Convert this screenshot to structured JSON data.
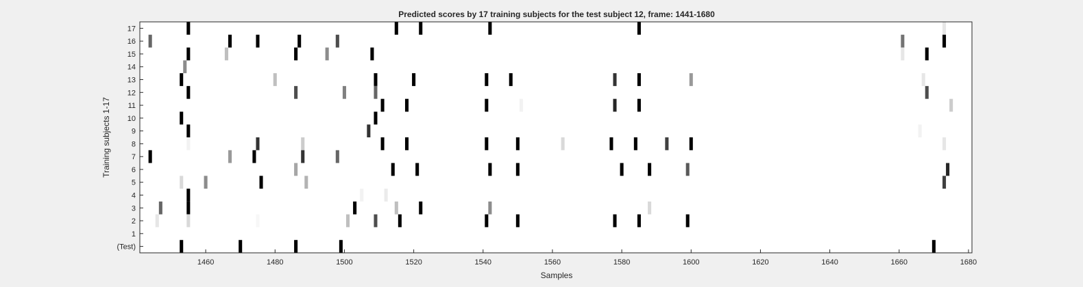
{
  "chart_data": {
    "type": "heatmap",
    "title": "Predicted scores by 17 training subjects for the test subject 12, frame: 1441-1680",
    "xlabel": "Samples",
    "ylabel": "Training subjects 1-17",
    "xlim": [
      1441,
      1680
    ],
    "x_ticks": [
      1460,
      1480,
      1500,
      1520,
      1540,
      1560,
      1580,
      1600,
      1620,
      1640,
      1660,
      1680
    ],
    "rows": [
      "(Test)",
      "1",
      "2",
      "3",
      "4",
      "5",
      "6",
      "7",
      "8",
      "9",
      "10",
      "11",
      "12",
      "13",
      "14",
      "15",
      "16",
      "17"
    ],
    "colormap": "white-to-black (score 0 = white, 1 = black)",
    "grid": false,
    "cells": [
      {
        "row": "17",
        "x": 1455,
        "v": 1.0
      },
      {
        "row": "17",
        "x": 1515,
        "v": 1.0
      },
      {
        "row": "17",
        "x": 1522,
        "v": 1.0
      },
      {
        "row": "17",
        "x": 1542,
        "v": 1.0
      },
      {
        "row": "17",
        "x": 1585,
        "v": 1.0
      },
      {
        "row": "17",
        "x": 1673,
        "v": 0.1
      },
      {
        "row": "16",
        "x": 1444,
        "v": 0.6
      },
      {
        "row": "16",
        "x": 1467,
        "v": 1.0
      },
      {
        "row": "16",
        "x": 1475,
        "v": 1.0
      },
      {
        "row": "16",
        "x": 1487,
        "v": 1.0
      },
      {
        "row": "16",
        "x": 1498,
        "v": 0.7
      },
      {
        "row": "16",
        "x": 1661,
        "v": 0.55
      },
      {
        "row": "16",
        "x": 1673,
        "v": 1.0
      },
      {
        "row": "15",
        "x": 1455,
        "v": 1.0
      },
      {
        "row": "15",
        "x": 1466,
        "v": 0.25
      },
      {
        "row": "15",
        "x": 1486,
        "v": 1.0
      },
      {
        "row": "15",
        "x": 1495,
        "v": 0.45
      },
      {
        "row": "15",
        "x": 1508,
        "v": 1.0
      },
      {
        "row": "15",
        "x": 1661,
        "v": 0.1
      },
      {
        "row": "15",
        "x": 1668,
        "v": 1.0
      },
      {
        "row": "14",
        "x": 1454,
        "v": 0.45
      },
      {
        "row": "13",
        "x": 1453,
        "v": 1.0
      },
      {
        "row": "13",
        "x": 1480,
        "v": 0.25
      },
      {
        "row": "13",
        "x": 1509,
        "v": 1.0
      },
      {
        "row": "13",
        "x": 1520,
        "v": 1.0
      },
      {
        "row": "13",
        "x": 1541,
        "v": 1.0
      },
      {
        "row": "13",
        "x": 1548,
        "v": 1.0
      },
      {
        "row": "13",
        "x": 1578,
        "v": 0.8
      },
      {
        "row": "13",
        "x": 1585,
        "v": 1.0
      },
      {
        "row": "13",
        "x": 1600,
        "v": 0.4
      },
      {
        "row": "13",
        "x": 1667,
        "v": 0.1
      },
      {
        "row": "12",
        "x": 1455,
        "v": 1.0
      },
      {
        "row": "12",
        "x": 1486,
        "v": 0.7
      },
      {
        "row": "12",
        "x": 1500,
        "v": 0.5
      },
      {
        "row": "12",
        "x": 1509,
        "v": 0.6
      },
      {
        "row": "12",
        "x": 1668,
        "v": 0.7
      },
      {
        "row": "11",
        "x": 1511,
        "v": 1.0
      },
      {
        "row": "11",
        "x": 1518,
        "v": 1.0
      },
      {
        "row": "11",
        "x": 1541,
        "v": 1.0
      },
      {
        "row": "11",
        "x": 1551,
        "v": 0.05
      },
      {
        "row": "11",
        "x": 1578,
        "v": 0.85
      },
      {
        "row": "11",
        "x": 1585,
        "v": 1.0
      },
      {
        "row": "11",
        "x": 1675,
        "v": 0.2
      },
      {
        "row": "10",
        "x": 1453,
        "v": 1.0
      },
      {
        "row": "10",
        "x": 1509,
        "v": 1.0
      },
      {
        "row": "9",
        "x": 1455,
        "v": 1.0
      },
      {
        "row": "9",
        "x": 1507,
        "v": 0.8
      },
      {
        "row": "9",
        "x": 1666,
        "v": 0.05
      },
      {
        "row": "8",
        "x": 1455,
        "v": 0.05
      },
      {
        "row": "8",
        "x": 1475,
        "v": 0.8
      },
      {
        "row": "8",
        "x": 1488,
        "v": 0.2
      },
      {
        "row": "8",
        "x": 1511,
        "v": 1.0
      },
      {
        "row": "8",
        "x": 1518,
        "v": 1.0
      },
      {
        "row": "8",
        "x": 1541,
        "v": 1.0
      },
      {
        "row": "8",
        "x": 1550,
        "v": 1.0
      },
      {
        "row": "8",
        "x": 1563,
        "v": 0.15
      },
      {
        "row": "8",
        "x": 1577,
        "v": 1.0
      },
      {
        "row": "8",
        "x": 1584,
        "v": 1.0
      },
      {
        "row": "8",
        "x": 1593,
        "v": 0.75
      },
      {
        "row": "8",
        "x": 1600,
        "v": 1.0
      },
      {
        "row": "8",
        "x": 1673,
        "v": 0.1
      },
      {
        "row": "7",
        "x": 1444,
        "v": 1.0
      },
      {
        "row": "7",
        "x": 1467,
        "v": 0.4
      },
      {
        "row": "7",
        "x": 1474,
        "v": 1.0
      },
      {
        "row": "7",
        "x": 1488,
        "v": 0.8
      },
      {
        "row": "7",
        "x": 1498,
        "v": 0.6
      },
      {
        "row": "6",
        "x": 1486,
        "v": 0.35
      },
      {
        "row": "6",
        "x": 1514,
        "v": 1.0
      },
      {
        "row": "6",
        "x": 1521,
        "v": 1.0
      },
      {
        "row": "6",
        "x": 1542,
        "v": 1.0
      },
      {
        "row": "6",
        "x": 1550,
        "v": 1.0
      },
      {
        "row": "6",
        "x": 1580,
        "v": 1.0
      },
      {
        "row": "6",
        "x": 1588,
        "v": 1.0
      },
      {
        "row": "6",
        "x": 1599,
        "v": 0.65
      },
      {
        "row": "6",
        "x": 1674,
        "v": 0.85
      },
      {
        "row": "5",
        "x": 1453,
        "v": 0.15
      },
      {
        "row": "5",
        "x": 1460,
        "v": 0.45
      },
      {
        "row": "5",
        "x": 1476,
        "v": 1.0
      },
      {
        "row": "5",
        "x": 1489,
        "v": 0.3
      },
      {
        "row": "5",
        "x": 1673,
        "v": 0.75
      },
      {
        "row": "4",
        "x": 1455,
        "v": 1.0
      },
      {
        "row": "4",
        "x": 1505,
        "v": 0.05
      },
      {
        "row": "4",
        "x": 1512,
        "v": 0.08
      },
      {
        "row": "3",
        "x": 1447,
        "v": 0.6
      },
      {
        "row": "3",
        "x": 1455,
        "v": 1.0
      },
      {
        "row": "3",
        "x": 1503,
        "v": 1.0
      },
      {
        "row": "3",
        "x": 1515,
        "v": 0.25
      },
      {
        "row": "3",
        "x": 1522,
        "v": 1.0
      },
      {
        "row": "3",
        "x": 1542,
        "v": 0.45
      },
      {
        "row": "3",
        "x": 1588,
        "v": 0.15
      },
      {
        "row": "2",
        "x": 1446,
        "v": 0.1
      },
      {
        "row": "2",
        "x": 1455,
        "v": 0.15
      },
      {
        "row": "2",
        "x": 1475,
        "v": 0.03
      },
      {
        "row": "2",
        "x": 1501,
        "v": 0.25
      },
      {
        "row": "2",
        "x": 1509,
        "v": 0.7
      },
      {
        "row": "2",
        "x": 1516,
        "v": 1.0
      },
      {
        "row": "2",
        "x": 1541,
        "v": 1.0
      },
      {
        "row": "2",
        "x": 1550,
        "v": 1.0
      },
      {
        "row": "2",
        "x": 1578,
        "v": 1.0
      },
      {
        "row": "2",
        "x": 1585,
        "v": 1.0
      },
      {
        "row": "2",
        "x": 1599,
        "v": 1.0
      },
      {
        "row": "(Test)",
        "x": 1453,
        "v": 1.0
      },
      {
        "row": "(Test)",
        "x": 1470,
        "v": 1.0
      },
      {
        "row": "(Test)",
        "x": 1486,
        "v": 1.0
      },
      {
        "row": "(Test)",
        "x": 1499,
        "v": 1.0
      },
      {
        "row": "(Test)",
        "x": 1670,
        "v": 1.0
      }
    ]
  }
}
